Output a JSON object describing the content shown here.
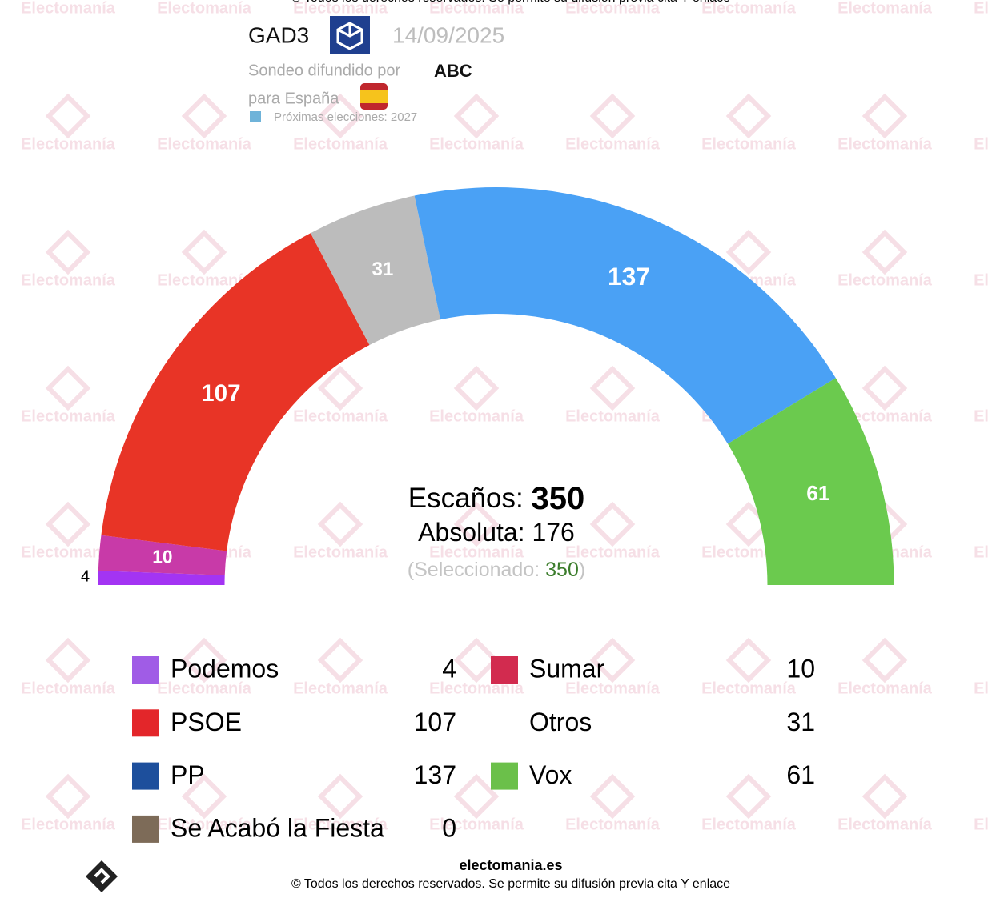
{
  "chart_data": {
    "type": "semicircle",
    "watermark": "Electomanía",
    "header": {
      "pollster": "GAD3",
      "date": "14/09/2025",
      "published_by": "Sondeo difundido por",
      "outlet": "ABC",
      "region": "para España",
      "next_election": "Próximas elecciones: 2027"
    },
    "center": {
      "seats_label": "Escaños:",
      "seats_total": 350,
      "majority_label": "Absoluta:",
      "majority": 176,
      "selected_open": "(Seleccionado:",
      "selected": 350,
      "selected_close": ")"
    },
    "series": [
      {
        "name": "Podemos",
        "color": "#a334f3",
        "icon_color": "#a05ce6",
        "values": [
          4
        ]
      },
      {
        "name": "Sumar",
        "color": "#c83aa8",
        "icon_color": "#d22b4f",
        "values": [
          10
        ]
      },
      {
        "name": "PSOE",
        "color": "#e83426",
        "icon_color": "#e3262a",
        "values": [
          107
        ]
      },
      {
        "name": "Otros",
        "color": "#bcbcbc",
        "values": [
          31
        ]
      },
      {
        "name": "PP",
        "color": "#4aa1f5",
        "icon_color": "#1d4f9c",
        "values": [
          137
        ]
      },
      {
        "name": "Vox",
        "color": "#6bca4e",
        "icon_color": "#6bc04a",
        "values": [
          61
        ]
      },
      {
        "name": "Se Acabó la Fiesta",
        "color": "#7d6b58",
        "icon_color": "#7d6b58",
        "values": [
          0
        ]
      }
    ],
    "footer": {
      "site": "electomania.es",
      "copyright": "© Todos los derechos reservados. Se permite su difusión previa cita Y enlace"
    }
  }
}
